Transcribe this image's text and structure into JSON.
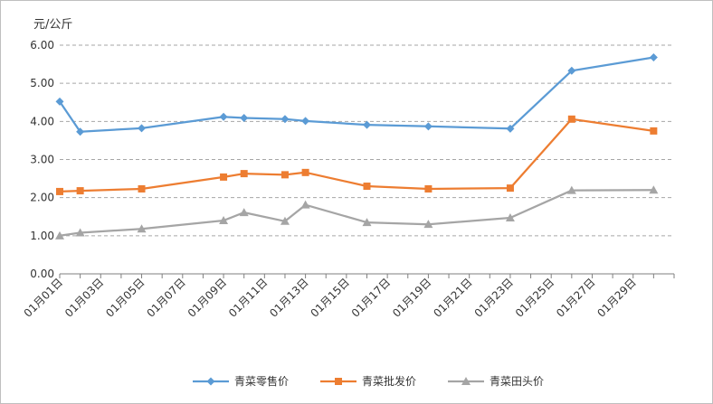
{
  "chart_data": {
    "type": "line",
    "unit_label": "元/公斤",
    "ylim": [
      0,
      6
    ],
    "y_ticks": [
      "0.00",
      "1.00",
      "2.00",
      "3.00",
      "4.00",
      "5.00",
      "6.00"
    ],
    "x_ticks": [
      "01月01日",
      "01月03日",
      "01月05日",
      "01月07日",
      "01月09日",
      "01月11日",
      "01月13日",
      "01月15日",
      "01月17日",
      "01月19日",
      "01月21日",
      "01月23日",
      "01月25日",
      "01月27日",
      "01月29日"
    ],
    "x_range": [
      1,
      31
    ],
    "grid": "horizontal-dashed",
    "legend_position": "bottom",
    "series": [
      {
        "name": "青菜零售价",
        "color": "#5b9bd5",
        "marker": "diamond",
        "points": [
          [
            1,
            4.52
          ],
          [
            2,
            3.73
          ],
          [
            5,
            3.82
          ],
          [
            9,
            4.12
          ],
          [
            10,
            4.09
          ],
          [
            12,
            4.06
          ],
          [
            13,
            4.01
          ],
          [
            16,
            3.91
          ],
          [
            19,
            3.87
          ],
          [
            23,
            3.81
          ],
          [
            26,
            5.33
          ],
          [
            30,
            5.68
          ]
        ]
      },
      {
        "name": "青菜批发价",
        "color": "#ed7d31",
        "marker": "square",
        "points": [
          [
            1,
            2.16
          ],
          [
            2,
            2.18
          ],
          [
            5,
            2.23
          ],
          [
            9,
            2.54
          ],
          [
            10,
            2.63
          ],
          [
            12,
            2.6
          ],
          [
            13,
            2.66
          ],
          [
            16,
            2.3
          ],
          [
            19,
            2.23
          ],
          [
            23,
            2.25
          ],
          [
            26,
            4.06
          ],
          [
            30,
            3.75
          ]
        ]
      },
      {
        "name": "青菜田头价",
        "color": "#a5a5a5",
        "marker": "triangle",
        "points": [
          [
            1,
            1.0
          ],
          [
            2,
            1.08
          ],
          [
            5,
            1.18
          ],
          [
            9,
            1.4
          ],
          [
            10,
            1.61
          ],
          [
            12,
            1.38
          ],
          [
            13,
            1.81
          ],
          [
            16,
            1.35
          ],
          [
            19,
            1.3
          ],
          [
            23,
            1.47
          ],
          [
            26,
            2.19
          ],
          [
            30,
            2.2
          ]
        ]
      }
    ]
  }
}
